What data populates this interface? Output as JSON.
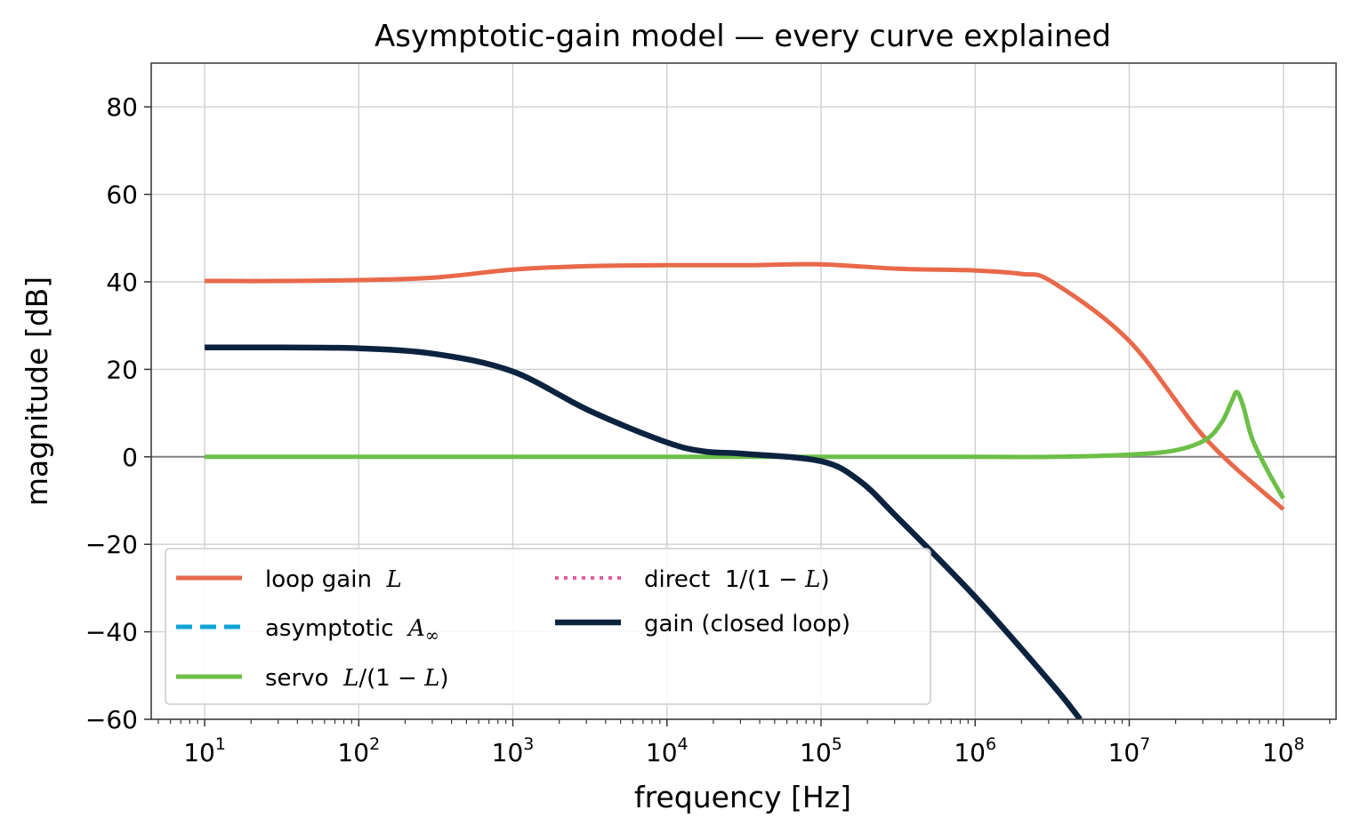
{
  "chart_data": {
    "type": "line",
    "title": "Asymptotic-gain model — every curve explained",
    "xlabel": "frequency [Hz]",
    "ylabel": "magnitude [dB]",
    "xscale": "log",
    "xlim": [
      4.5,
      220000000.0
    ],
    "ylim": [
      -60,
      90
    ],
    "x_ticks": [
      {
        "base": "10",
        "exp": "1"
      },
      {
        "base": "10",
        "exp": "2"
      },
      {
        "base": "10",
        "exp": "3"
      },
      {
        "base": "10",
        "exp": "4"
      },
      {
        "base": "10",
        "exp": "5"
      },
      {
        "base": "10",
        "exp": "6"
      },
      {
        "base": "10",
        "exp": "7"
      },
      {
        "base": "10",
        "exp": "8"
      }
    ],
    "y_ticks": [
      "−60",
      "−40",
      "−20",
      "0",
      "20",
      "40",
      "60",
      "80"
    ],
    "grid": true,
    "zero_line": true,
    "legend_position": "lower-left",
    "series": [
      {
        "name": "loop gain L",
        "legend": {
          "prefix": "loop gain  ",
          "math": "L",
          "suffix": ""
        },
        "color": "#e8694a",
        "style": "solid",
        "x": [
          10,
          31.6,
          100,
          316,
          1000,
          3160,
          10000,
          31600,
          100000,
          316000,
          1000000,
          2000000,
          3160000,
          10000000,
          31600000,
          100000000
        ],
        "y": [
          40.2,
          40.2,
          40.4,
          41,
          42.8,
          43.6,
          43.8,
          43.8,
          44,
          43,
          42.6,
          41.8,
          40,
          26.5,
          4,
          -12
        ]
      },
      {
        "name": "asymptotic A∞",
        "legend": {
          "prefix": "asymptotic  ",
          "math": "A",
          "sub": "∞",
          "suffix": ""
        },
        "color": "#0fa3d4",
        "style": "dashed",
        "x": [],
        "y": []
      },
      {
        "name": "servo L/(1 − L)",
        "legend": {
          "prefix": "servo  ",
          "math": "L",
          "suffix": "/(1 − ",
          "math2": "L",
          "suffix2": ")"
        },
        "color": "#6cbf47",
        "style": "solid",
        "x": [
          10,
          100,
          1000,
          10000,
          100000,
          1000000,
          3160000,
          10000000,
          20000000,
          31600000,
          40000000,
          46000000,
          50000000,
          55000000,
          63000000,
          80000000,
          100000000
        ],
        "y": [
          0,
          0,
          0,
          0,
          0,
          0,
          0,
          0.5,
          1.5,
          4,
          8,
          12.5,
          14.8,
          11.5,
          4,
          -3.5,
          -9.5
        ]
      },
      {
        "name": "direct 1/(1 − L)",
        "legend": {
          "prefix": "direct  1/(1 − ",
          "math": "L",
          "suffix": ")"
        },
        "color": "#e05f9c",
        "style": "dotted",
        "x": [],
        "y": []
      },
      {
        "name": "gain (closed loop)",
        "legend": {
          "prefix": "gain (closed loop)",
          "math": "",
          "suffix": ""
        },
        "color": "#0c2340",
        "style": "solid-thick",
        "x": [
          10,
          31.6,
          100,
          316,
          1000,
          3160,
          10000,
          17800,
          31600,
          100000,
          178000,
          316000,
          1000000,
          3160000,
          4800000
        ],
        "y": [
          25,
          25,
          24.8,
          23.5,
          19.5,
          10.5,
          3.3,
          1.2,
          0.7,
          -1,
          -5.5,
          -14,
          -32,
          -52,
          -60
        ]
      }
    ]
  }
}
